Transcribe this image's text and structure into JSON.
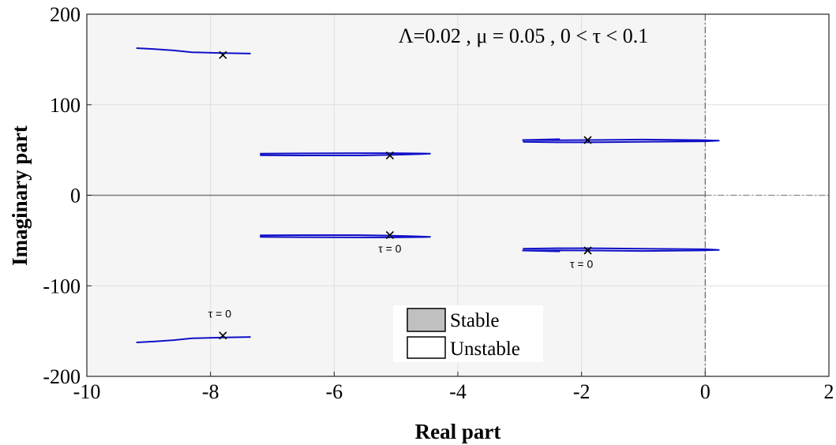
{
  "chart_data": {
    "type": "line",
    "xlabel": "Real part",
    "ylabel": "Imaginary part",
    "xlim": [
      -10,
      2
    ],
    "ylim": [
      -200,
      200
    ],
    "xticks": [
      "-10",
      "-8",
      "-6",
      "-4",
      "-2",
      "0",
      "2"
    ],
    "yticks": [
      "200",
      "100",
      "0",
      "-100",
      "-200"
    ],
    "xtick_values": [
      -10,
      -8,
      -6,
      -4,
      -2,
      0,
      2
    ],
    "ytick_values": [
      200,
      100,
      0,
      -100,
      -200
    ],
    "grid": true,
    "title_annotation": "Λ=0.02 , μ = 0.05 , 0 < τ < 0.1",
    "legend": {
      "placement": "bottom-center",
      "entries": [
        {
          "label": "Stable",
          "fill": "#c0c0c0"
        },
        {
          "label": "Unstable",
          "fill": "#ffffff"
        }
      ]
    },
    "regions": {
      "stable_x_range": [
        -10,
        0
      ],
      "stable_fill": "#f5f5f5",
      "unstable_fill": "#ffffff"
    },
    "line_color": "#1010c8",
    "marker_color": "#000000",
    "series": [
      {
        "x": [
          -9.2,
          -8.9,
          -8.6,
          -8.3,
          -7.8,
          -7.35
        ],
        "y": [
          162.5,
          161.5,
          160,
          158,
          157,
          156.5
        ]
      },
      {
        "x": [
          -9.2,
          -8.9,
          -8.6,
          -8.3,
          -7.8,
          -7.35
        ],
        "y": [
          -162.5,
          -161.5,
          -160,
          -158,
          -157,
          -156.5
        ]
      },
      {
        "x": [
          -7.2,
          -6.5,
          -5.6,
          -5.1,
          -4.6,
          -4.45,
          -4.6,
          -5.1,
          -5.6,
          -6.5,
          -7.2
        ],
        "y": [
          46,
          46.3,
          46.5,
          46.5,
          46.2,
          46,
          45.6,
          44.5,
          44,
          44,
          44.2
        ]
      },
      {
        "x": [
          -7.2,
          -6.5,
          -5.6,
          -5.1,
          -4.6,
          -4.45,
          -4.6,
          -5.1,
          -5.6,
          -6.5,
          -7.2
        ],
        "y": [
          -46,
          -46.3,
          -46.5,
          -46.5,
          -46.2,
          -46,
          -45.6,
          -44.5,
          -44,
          -44,
          -44.2
        ]
      },
      {
        "x": [
          -2.35,
          -2.95,
          -2.4,
          -1.9,
          -1.0,
          0.0,
          0.22,
          0.0,
          -1.0,
          -1.9,
          -2.4,
          -2.95
        ],
        "y": [
          62,
          61,
          60.8,
          61,
          61.5,
          60.8,
          60.3,
          59.6,
          59,
          58.5,
          58.5,
          59
        ]
      },
      {
        "x": [
          -2.35,
          -2.95,
          -2.4,
          -1.9,
          -1.0,
          0.0,
          0.22,
          0.0,
          -1.0,
          -1.9,
          -2.4,
          -2.95
        ],
        "y": [
          -62,
          -61,
          -60.8,
          -61,
          -61.5,
          -60.8,
          -60.3,
          -59.6,
          -59,
          -58.5,
          -58.5,
          -59
        ]
      }
    ],
    "markers": [
      {
        "x": -7.8,
        "y": 155
      },
      {
        "x": -7.8,
        "y": -155
      },
      {
        "x": -5.1,
        "y": 44
      },
      {
        "x": -5.1,
        "y": -44
      },
      {
        "x": -1.9,
        "y": 61
      },
      {
        "x": -1.9,
        "y": -61
      }
    ],
    "annotations": [
      {
        "text": "τ = 0",
        "x": -7.85,
        "y": -135
      },
      {
        "text": "τ = 0",
        "x": -5.1,
        "y": -63
      },
      {
        "text": "τ = 0",
        "x": -2.0,
        "y": -80
      }
    ]
  }
}
